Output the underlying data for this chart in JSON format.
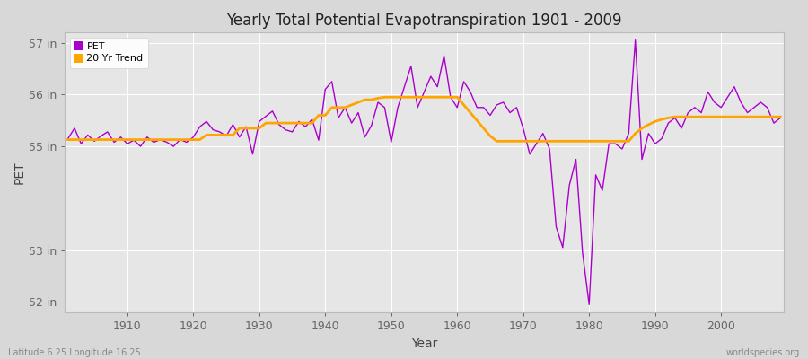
{
  "title": "Yearly Total Potential Evapotranspiration 1901 - 2009",
  "xlabel": "Year",
  "ylabel": "PET",
  "lat_lon_label": "Latitude 6.25 Longitude 16.25",
  "source_label": "worldspecies.org",
  "pet_color": "#AA00CC",
  "trend_color": "#FFA500",
  "bg_color": "#D8D8D8",
  "plot_bg_color": "#E6E6E6",
  "years": [
    1901,
    1902,
    1903,
    1904,
    1905,
    1906,
    1907,
    1908,
    1909,
    1910,
    1911,
    1912,
    1913,
    1914,
    1915,
    1916,
    1917,
    1918,
    1919,
    1920,
    1921,
    1922,
    1923,
    1924,
    1925,
    1926,
    1927,
    1928,
    1929,
    1930,
    1931,
    1932,
    1933,
    1934,
    1935,
    1936,
    1937,
    1938,
    1939,
    1940,
    1941,
    1942,
    1943,
    1944,
    1945,
    1946,
    1947,
    1948,
    1949,
    1950,
    1951,
    1952,
    1953,
    1954,
    1955,
    1956,
    1957,
    1958,
    1959,
    1960,
    1961,
    1962,
    1963,
    1964,
    1965,
    1966,
    1967,
    1968,
    1969,
    1970,
    1971,
    1972,
    1973,
    1974,
    1975,
    1976,
    1977,
    1978,
    1979,
    1980,
    1981,
    1982,
    1983,
    1984,
    1985,
    1986,
    1987,
    1988,
    1989,
    1990,
    1991,
    1992,
    1993,
    1994,
    1995,
    1996,
    1997,
    1998,
    1999,
    2000,
    2001,
    2002,
    2003,
    2004,
    2005,
    2006,
    2007,
    2008,
    2009
  ],
  "pet_values": [
    55.15,
    55.35,
    55.05,
    55.22,
    55.1,
    55.2,
    55.28,
    55.08,
    55.18,
    55.05,
    55.12,
    55.0,
    55.18,
    55.08,
    55.13,
    55.08,
    55.0,
    55.13,
    55.08,
    55.18,
    55.38,
    55.48,
    55.32,
    55.28,
    55.2,
    55.42,
    55.18,
    55.38,
    54.85,
    55.48,
    55.58,
    55.68,
    55.42,
    55.32,
    55.28,
    55.48,
    55.38,
    55.52,
    55.12,
    56.1,
    56.25,
    55.55,
    55.75,
    55.45,
    55.65,
    55.18,
    55.4,
    55.85,
    55.75,
    55.08,
    55.75,
    56.15,
    56.55,
    55.75,
    56.05,
    56.35,
    56.15,
    56.75,
    55.95,
    55.75,
    56.25,
    56.05,
    55.75,
    55.75,
    55.6,
    55.8,
    55.85,
    55.65,
    55.75,
    55.35,
    54.85,
    55.05,
    55.25,
    54.95,
    53.45,
    53.05,
    54.25,
    54.75,
    52.95,
    51.95,
    54.45,
    54.15,
    55.05,
    55.05,
    54.95,
    55.25,
    57.05,
    54.75,
    55.25,
    55.05,
    55.15,
    55.45,
    55.55,
    55.35,
    55.65,
    55.75,
    55.65,
    56.05,
    55.85,
    55.75,
    55.95,
    56.15,
    55.85,
    55.65,
    55.75,
    55.85,
    55.75,
    55.45,
    55.55
  ],
  "trend_values": [
    55.13,
    55.13,
    55.13,
    55.13,
    55.13,
    55.13,
    55.13,
    55.13,
    55.13,
    55.13,
    55.13,
    55.13,
    55.13,
    55.13,
    55.13,
    55.13,
    55.13,
    55.13,
    55.13,
    55.13,
    55.13,
    55.22,
    55.22,
    55.22,
    55.22,
    55.22,
    55.35,
    55.35,
    55.35,
    55.35,
    55.45,
    55.45,
    55.45,
    55.45,
    55.45,
    55.45,
    55.45,
    55.45,
    55.6,
    55.6,
    55.75,
    55.75,
    55.75,
    55.8,
    55.85,
    55.9,
    55.9,
    55.93,
    55.95,
    55.95,
    55.95,
    55.95,
    55.95,
    55.95,
    55.95,
    55.95,
    55.95,
    55.95,
    55.95,
    55.95,
    55.8,
    55.65,
    55.5,
    55.35,
    55.2,
    55.1,
    55.1,
    55.1,
    55.1,
    55.1,
    55.1,
    55.1,
    55.1,
    55.1,
    55.1,
    55.1,
    55.1,
    55.1,
    55.1,
    55.1,
    55.1,
    55.1,
    55.1,
    55.1,
    55.1,
    55.1,
    55.25,
    55.35,
    55.42,
    55.48,
    55.52,
    55.55,
    55.57,
    55.57,
    55.57,
    55.57,
    55.57,
    55.57,
    55.57,
    55.57,
    55.57,
    55.57,
    55.57,
    55.57,
    55.57,
    55.57,
    55.57,
    55.57,
    55.57
  ],
  "ylim": [
    51.8,
    57.2
  ],
  "yticks": [
    52,
    53,
    55,
    56,
    57
  ],
  "ytick_labels": [
    "52 in",
    "53 in",
    "55 in",
    "56 in",
    "57 in"
  ],
  "xticks": [
    1910,
    1920,
    1930,
    1940,
    1950,
    1960,
    1970,
    1980,
    1990,
    2000
  ],
  "xlim": [
    1900.5,
    2009.5
  ]
}
